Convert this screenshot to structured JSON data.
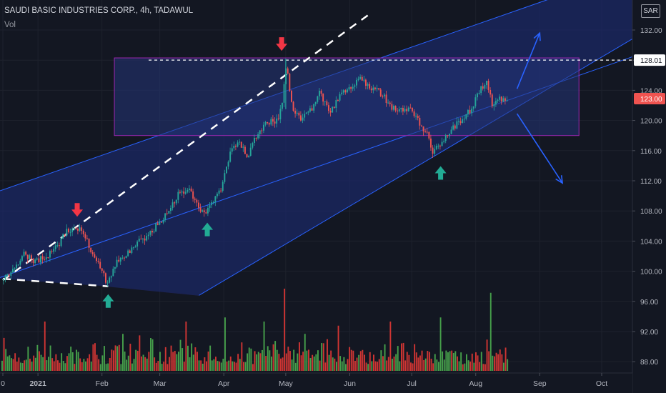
{
  "header": {
    "title": "SAUDI BASIC INDUSTRIES CORP., 4h, TADAWUL",
    "volume_label": "Vol",
    "currency": "SAR"
  },
  "colors": {
    "background": "#131722",
    "up": "#26a69a",
    "down": "#ef5350",
    "vol_up": "#4caf50",
    "vol_down": "#e53935",
    "channel_line": "#2962ff",
    "channel_fill": "#1c2a6e",
    "range_box_border": "#9c27b0",
    "range_box_fill": "#253579",
    "midline": "#ffffff",
    "grid": "#1e222d",
    "arrow_down_marker": "#f23645",
    "arrow_up_marker": "#22ab94",
    "price_tag": "#ef5350"
  },
  "chart_data": {
    "type": "candlestick",
    "symbol": "SAUDI BASIC INDUSTRIES CORP.",
    "interval": "4h",
    "exchange": "TADAWUL",
    "last_price": 123.0,
    "last_price_label": "123.00",
    "level_price": 128.01,
    "level_label": "128.01",
    "y_ticks": [
      132,
      128,
      124,
      120,
      116,
      112,
      108,
      104,
      100,
      96,
      92,
      88
    ],
    "y_tick_labels": [
      "132.00",
      "128.00",
      "124.00",
      "120.00",
      "116.00",
      "112.00",
      "108.00",
      "104.00",
      "100.00",
      "96.00",
      "92.00",
      "88.00"
    ],
    "x_ticks": [
      {
        "label": "0",
        "date": "2020-12-15"
      },
      {
        "label": "2021",
        "date": "2021-01-01"
      },
      {
        "label": "Feb",
        "date": "2021-02-01"
      },
      {
        "label": "Mar",
        "date": "2021-03-01"
      },
      {
        "label": "Apr",
        "date": "2021-04-01"
      },
      {
        "label": "May",
        "date": "2021-05-01"
      },
      {
        "label": "Jun",
        "date": "2021-06-01"
      },
      {
        "label": "Jul",
        "date": "2021-07-01"
      },
      {
        "label": "Aug",
        "date": "2021-08-01"
      },
      {
        "label": "Sep",
        "date": "2021-09-01"
      },
      {
        "label": "Oct",
        "date": "2021-10-01"
      }
    ],
    "price_path": [
      [
        "2020-12-15",
        98.8
      ],
      [
        "2020-12-20",
        100.5
      ],
      [
        "2020-12-25",
        102.4
      ],
      [
        "2020-12-30",
        101.3
      ],
      [
        "2021-01-05",
        102.0
      ],
      [
        "2021-01-10",
        103.3
      ],
      [
        "2021-01-15",
        105.5
      ],
      [
        "2021-01-20",
        105.8
      ],
      [
        "2021-01-25",
        103.8
      ],
      [
        "2021-01-28",
        101.8
      ],
      [
        "2021-02-03",
        98.6
      ],
      [
        "2021-02-08",
        101.3
      ],
      [
        "2021-02-13",
        102.3
      ],
      [
        "2021-02-18",
        103.8
      ],
      [
        "2021-02-23",
        104.8
      ],
      [
        "2021-02-28",
        106.3
      ],
      [
        "2021-03-05",
        107.8
      ],
      [
        "2021-03-10",
        110.3
      ],
      [
        "2021-03-15",
        110.8
      ],
      [
        "2021-03-18",
        109.0
      ],
      [
        "2021-03-22",
        107.5
      ],
      [
        "2021-03-25",
        109.0
      ],
      [
        "2021-03-30",
        110.8
      ],
      [
        "2021-04-05",
        117.0
      ],
      [
        "2021-04-09",
        116.8
      ],
      [
        "2021-04-12",
        114.8
      ],
      [
        "2021-04-16",
        117.8
      ],
      [
        "2021-04-22",
        119.8
      ],
      [
        "2021-04-27",
        119.9
      ],
      [
        "2021-04-29",
        122.5
      ],
      [
        "2021-05-01",
        127.2
      ],
      [
        "2021-05-04",
        121.3
      ],
      [
        "2021-05-08",
        120.4
      ],
      [
        "2021-05-13",
        121.3
      ],
      [
        "2021-05-17",
        123.8
      ],
      [
        "2021-05-22",
        121.0
      ],
      [
        "2021-05-27",
        123.3
      ],
      [
        "2021-06-01",
        124.6
      ],
      [
        "2021-06-06",
        125.6
      ],
      [
        "2021-06-11",
        124.3
      ],
      [
        "2021-06-16",
        123.6
      ],
      [
        "2021-06-21",
        121.7
      ],
      [
        "2021-06-26",
        121.6
      ],
      [
        "2021-06-30",
        121.3
      ],
      [
        "2021-07-05",
        119.5
      ],
      [
        "2021-07-08",
        118.3
      ],
      [
        "2021-07-11",
        115.8
      ],
      [
        "2021-07-14",
        116.8
      ],
      [
        "2021-07-19",
        118.6
      ],
      [
        "2021-07-24",
        119.8
      ],
      [
        "2021-07-29",
        121.3
      ],
      [
        "2021-08-03",
        124.1
      ],
      [
        "2021-08-06",
        125.0
      ],
      [
        "2021-08-09",
        121.9
      ],
      [
        "2021-08-12",
        122.7
      ],
      [
        "2021-08-16",
        123.0
      ]
    ],
    "volume": {
      "ymax": 1.0,
      "peaks": [
        [
          "2021-04-01",
          0.65
        ],
        [
          "2021-04-30",
          1.0
        ],
        [
          "2021-07-15",
          0.65
        ],
        [
          "2021-08-08",
          0.95
        ],
        [
          "2021-03-13",
          0.6
        ],
        [
          "2021-05-26",
          0.55
        ],
        [
          "2021-02-11",
          0.45
        ],
        [
          "2021-01-04",
          0.6
        ],
        [
          "2021-06-20",
          0.6
        ],
        [
          "2021-02-24",
          0.4
        ],
        [
          "2021-04-20",
          0.6
        ],
        [
          "2021-05-10",
          0.45
        ]
      ]
    },
    "channels": [
      {
        "name": "",
        "p1": [
          "2020-12-15",
          110.8
        ],
        "p2": [
          "2021-09-15",
          137.0
        ]
      },
      {
        "name": "",
        "p1": [
          "2020-12-15",
          99.3
        ],
        "p2": [
          "2021-09-15",
          125.5
        ]
      },
      {
        "name": "",
        "p1": [
          "2021-03-20",
          96.8
        ],
        "p2": [
          "2021-10-25",
          132.3
        ]
      }
    ],
    "midline": {
      "p1": [
        "2020-12-15",
        98.8
      ],
      "p2": [
        "2021-06-10",
        134.0
      ]
    },
    "support_line": {
      "p1": [
        "2020-12-15",
        99.0
      ],
      "p2": [
        "2021-02-04",
        98.0
      ]
    },
    "lower_boundary": {
      "p1": [
        "2021-02-04",
        98.0
      ],
      "p2": [
        "2021-03-20",
        96.8
      ]
    },
    "range_box": {
      "x1": "2021-02-07",
      "x2": "2021-09-20",
      "y1": 128.3,
      "y2": 118.0
    },
    "markers": [
      {
        "direction": "down",
        "date": "2021-01-20",
        "price": 108.0
      },
      {
        "direction": "down",
        "date": "2021-04-29",
        "price": 130.0
      },
      {
        "direction": "up",
        "date": "2021-02-04",
        "price": 96.0
      },
      {
        "direction": "up",
        "date": "2021-03-24",
        "price": 105.5
      },
      {
        "direction": "up",
        "date": "2021-07-15",
        "price": 113.0
      }
    ],
    "projections": [
      {
        "from": [
          "2021-08-21",
          124.2
        ],
        "to": [
          "2021-09-01",
          131.6
        ]
      },
      {
        "from": [
          "2021-08-21",
          120.9
        ],
        "to": [
          "2021-09-12",
          111.7
        ]
      }
    ]
  }
}
